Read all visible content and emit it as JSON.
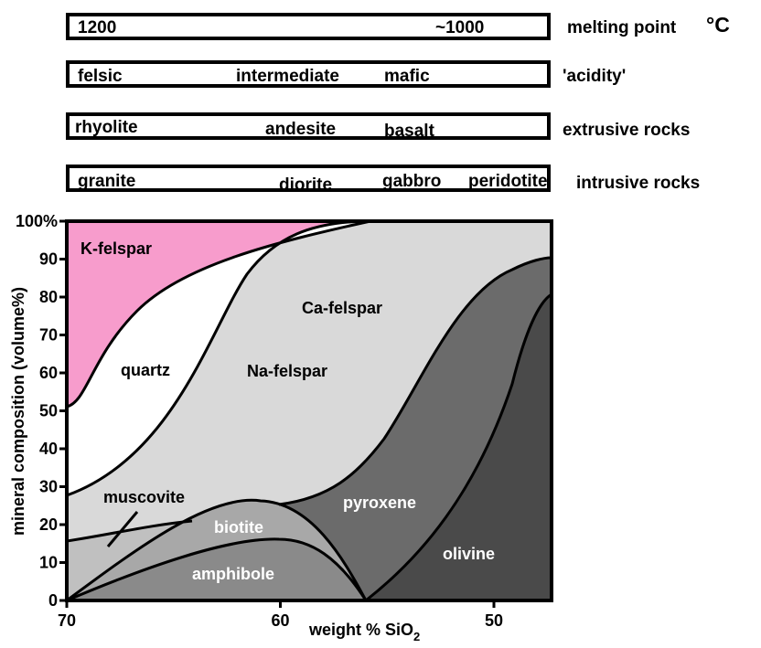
{
  "scales": {
    "melting": {
      "label": "melting point",
      "unit": "°C",
      "high": "1200",
      "low": "~1000"
    },
    "acidity": {
      "label": "'acidity'",
      "felsic": "felsic",
      "intermediate": "intermediate",
      "mafic": "mafic"
    },
    "extrusive": {
      "label": "extrusive rocks",
      "rhyolite": "rhyolite",
      "andesite": "andesite",
      "basalt": "basalt"
    },
    "intrusive": {
      "label": "intrusive rocks",
      "granite": "granite",
      "diorite": "diorite",
      "gabbro": "gabbro",
      "peridotite": "peridotite"
    }
  },
  "axes": {
    "ylabel": "mineral composition (volume%)",
    "xlabel_main": "weight % SiO",
    "xlabel_sub": "2",
    "yticks": [
      "0",
      "10",
      "20",
      "30",
      "40",
      "50",
      "60",
      "70",
      "80",
      "90",
      "100%"
    ],
    "xticks": [
      {
        "label": "70",
        "value": 70
      },
      {
        "label": "60",
        "value": 60
      },
      {
        "label": "50",
        "value": 50
      }
    ]
  },
  "minerals": {
    "kfelspar": {
      "label": "K-felspar",
      "color": "#f79ccc"
    },
    "quartz": {
      "label": "quartz",
      "color": "#ffffff"
    },
    "nafelspar": {
      "label": "Na-felspar",
      "color": "#d9d9d9"
    },
    "cafelspar": {
      "label": "Ca-felspar",
      "color": "#d9d9d9"
    },
    "muscovite": {
      "label": "muscovite",
      "color": "#c0c0c0"
    },
    "biotite": {
      "label": "biotite",
      "color": "#a8a8a8"
    },
    "amphibole": {
      "label": "amphibole",
      "color": "#8a8a8a"
    },
    "pyroxene": {
      "label": "pyroxene",
      "color": "#6b6b6b"
    },
    "olivine": {
      "label": "olivine",
      "color": "#4a4a4a"
    }
  }
}
